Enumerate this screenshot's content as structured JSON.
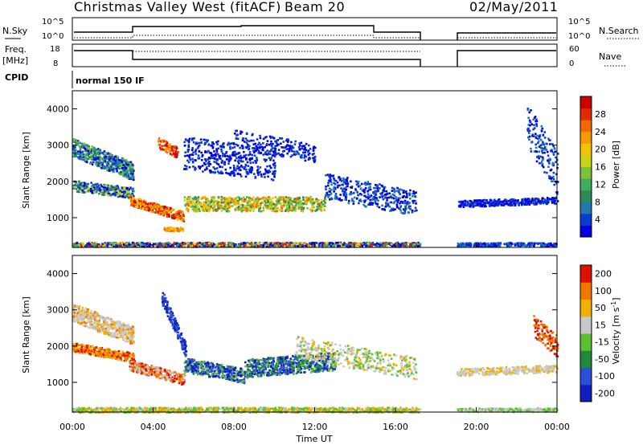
{
  "header": {
    "station": "Christmas Valley West (fitACF)",
    "beam": "Beam 20",
    "date": "02/May/2011"
  },
  "panels": {
    "nsky": {
      "label": "N.Sky",
      "left_ticks": [
        "10^5",
        "10^0"
      ],
      "right_label": "N.Search",
      "right_ticks": [
        "10^5",
        "10^0"
      ]
    },
    "freq": {
      "label_top": "Freq.",
      "label_bottom": "[MHz]",
      "left_ticks": [
        "18",
        "8"
      ],
      "right_label": "Nave",
      "right_ticks": [
        "60",
        "0"
      ]
    },
    "cpid": {
      "label": "CPID",
      "value": "normal 150 IF"
    }
  },
  "chart_data": [
    {
      "type": "heatmap",
      "name": "power",
      "ylabel": "Slant Range [km]",
      "yticks": [
        "4000",
        "3000",
        "2000",
        "1000"
      ],
      "ytick_values": [
        4000,
        3000,
        2000,
        1000
      ],
      "ylim": [
        180,
        4500
      ],
      "xlim": [
        0,
        24
      ],
      "colorbar": {
        "label": "Power [dB]",
        "ticks": [
          "28",
          "24",
          "20",
          "16",
          "12",
          "8",
          "4"
        ],
        "tick_values": [
          28,
          24,
          20,
          16,
          12,
          8,
          4
        ],
        "range": [
          0,
          32
        ],
        "colors": [
          "#0000e0",
          "#0a3cd0",
          "#1f78b0",
          "#2e8b57",
          "#3fae5a",
          "#7fc03a",
          "#c8d41a",
          "#f5c400",
          "#f59a00",
          "#f06a00",
          "#e02a00",
          "#cc0000"
        ]
      },
      "data_gap_hours": [
        17.2,
        18.7
      ]
    },
    {
      "type": "heatmap",
      "name": "velocity",
      "ylabel": "Slant Range [km]",
      "yticks": [
        "4000",
        "3000",
        "2000",
        "1000"
      ],
      "ytick_values": [
        4000,
        3000,
        2000,
        1000
      ],
      "ylim": [
        180,
        4500
      ],
      "xlim": [
        0,
        24
      ],
      "colorbar": {
        "label": "Velocity [m s^-1]",
        "ticks": [
          "200",
          "100",
          "50",
          "15",
          "-15",
          "-50",
          "-100",
          "-200"
        ],
        "colors": [
          "#1020c0",
          "#2a50d8",
          "#1e8a3a",
          "#5cbf30",
          "#c8c8c8",
          "#f0b000",
          "#f07800",
          "#e01000"
        ]
      },
      "data_gap_hours": [
        17.2,
        18.7
      ]
    }
  ],
  "x_axis": {
    "label": "Time UT",
    "ticks": [
      "00:00",
      "04:00",
      "08:00",
      "12:00",
      "16:00",
      "20:00",
      "00:00"
    ],
    "tick_values": [
      0,
      4,
      8,
      12,
      16,
      20,
      24
    ]
  },
  "colors": {
    "frame": "#000000",
    "background": "#ffffff"
  }
}
